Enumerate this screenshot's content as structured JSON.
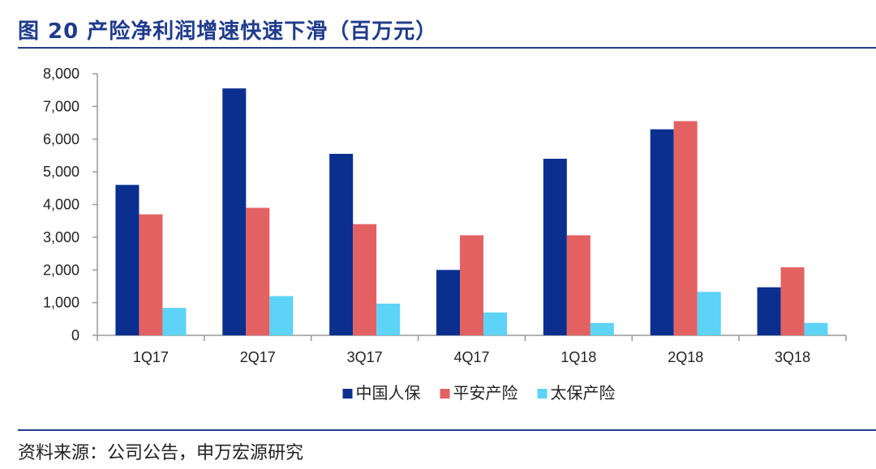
{
  "title": "图 20  产险净利润增速快速下滑（百万元）",
  "source": "资料来源：公司公告，申万宏源研究",
  "chart_data": {
    "type": "bar",
    "categories": [
      "1Q17",
      "2Q17",
      "3Q17",
      "4Q17",
      "1Q18",
      "2Q18",
      "3Q18"
    ],
    "series": [
      {
        "name": "中国人保",
        "color": "#0A2F8F",
        "values": [
          4600,
          7550,
          5550,
          2000,
          5400,
          6300,
          1470
        ]
      },
      {
        "name": "平安产险",
        "color": "#E46162",
        "values": [
          3700,
          3900,
          3400,
          3060,
          3060,
          6550,
          2080
        ]
      },
      {
        "name": "太保产险",
        "color": "#5CD3F7",
        "values": [
          840,
          1200,
          970,
          700,
          380,
          1330,
          380
        ]
      }
    ],
    "yticks": [
      "0",
      "1,000",
      "2,000",
      "3,000",
      "4,000",
      "5,000",
      "6,000",
      "7,000",
      "8,000"
    ],
    "ylim": [
      0,
      8000
    ],
    "legend_position": "bottom",
    "grid": false
  }
}
